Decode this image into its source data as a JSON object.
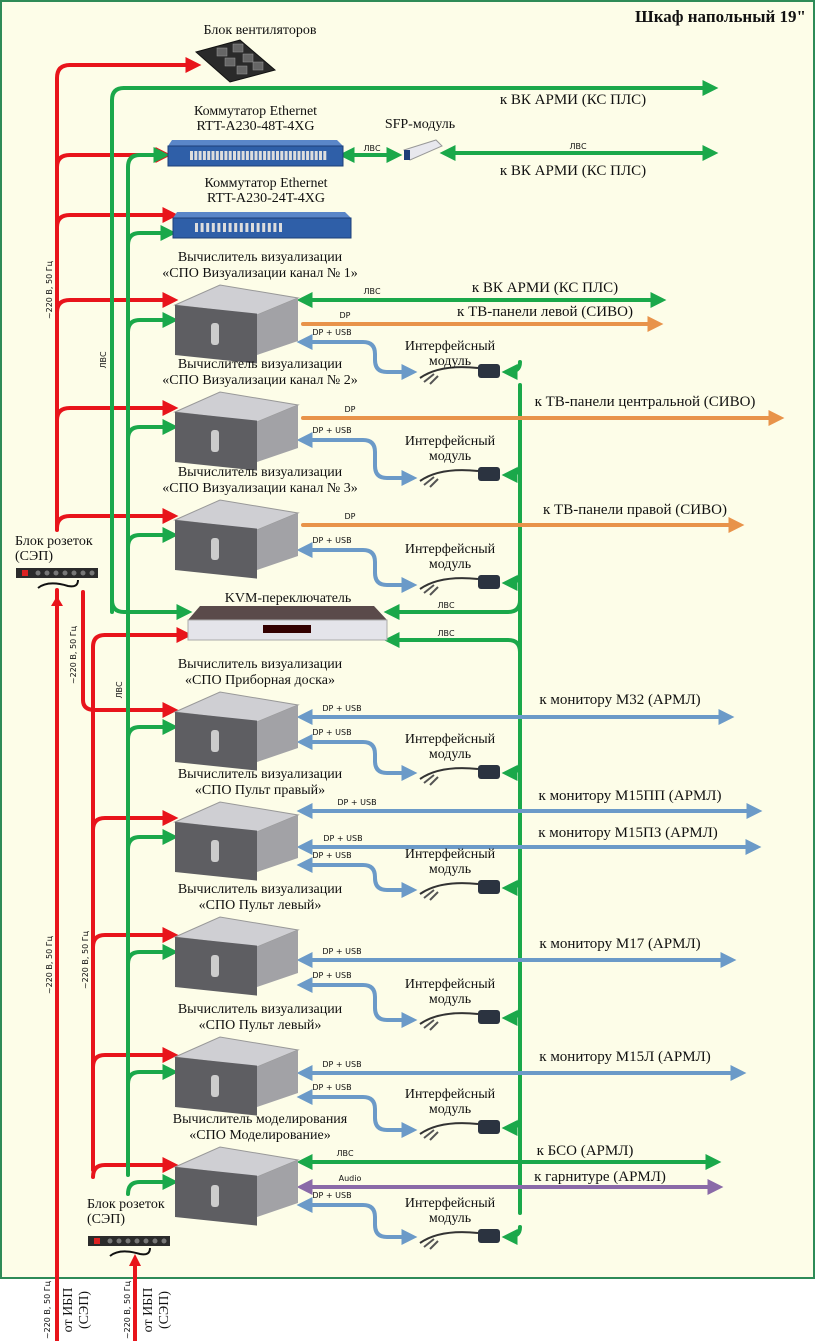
{
  "title": "Шкаф напольный 19\"",
  "fan_block": {
    "label": "Блок вентиляторов"
  },
  "switches": [
    {
      "line1": "Коммутатор Ethernet",
      "line2": "RTT-A230-48T-4XG"
    },
    {
      "line1": "Коммутатор Ethernet",
      "line2": "RTT-A230-24T-4XG"
    }
  ],
  "sfp": {
    "label": "SFP-модуль"
  },
  "kvm": {
    "label": "KVM-переключатель"
  },
  "computers": [
    {
      "line1": "Вычислитель визуализации",
      "line2": "«СПО Визуализации канал № 1»"
    },
    {
      "line1": "Вычислитель визуализации",
      "line2": "«СПО Визуализации канал № 2»"
    },
    {
      "line1": "Вычислитель визуализации",
      "line2": "«СПО Визуализации канал № 3»"
    },
    {
      "line1": "Вычислитель визуализации",
      "line2": "«СПО Приборная доска»"
    },
    {
      "line1": "Вычислитель визуализации",
      "line2": "«СПО Пульт правый»"
    },
    {
      "line1": "Вычислитель визуализации",
      "line2": "«СПО Пульт левый»"
    },
    {
      "line1": "Вычислитель визуализации",
      "line2": "«СПО Пульт левый»"
    },
    {
      "line1": "Вычислитель моделирования",
      "line2": "«СПО Моделирование»"
    }
  ],
  "interface_module": {
    "line1": "Интерфейсный",
    "line2": "модуль"
  },
  "power_strips": [
    {
      "line1": "Блок розеток",
      "line2": "(СЭП)"
    },
    {
      "line1": "Блок розеток",
      "line2": "(СЭП)"
    }
  ],
  "power_label": "~220 В, 50 Гц",
  "ups": {
    "line1": "от ИБП",
    "line2": "(СЭП)"
  },
  "link_labels": {
    "lan": "ЛВС",
    "dp": "DP",
    "dp_usb": "DP + USB",
    "audio": "Audio"
  },
  "destinations": [
    "к ВК АРМИ (КС ПЛС)",
    "к ВК АРМИ (КС ПЛС)",
    "к ВК АРМИ (КС ПЛС)",
    "к ТВ-панели левой (СИВО)",
    "к ТВ-панели центральной (СИВО)",
    "к ТВ-панели правой (СИВО)",
    "к монитору М32 (АРМЛ)",
    "к монитору М15ПП (АРМЛ)",
    "к монитору М15ПЗ (АРМЛ)",
    "к монитору М17 (АРМЛ)",
    "к монитору М15Л (АРМЛ)",
    "к БСО (АРМЛ)",
    "к гарнитуре (АРМЛ)"
  ],
  "colors": {
    "power": "#e8141b",
    "lan": "#1aa84a",
    "dp": "#e8934a",
    "dp_usb": "#6b9ac8",
    "audio": "#8a6aa8",
    "background": "#fdfde8",
    "frame": "#2e8b57"
  }
}
